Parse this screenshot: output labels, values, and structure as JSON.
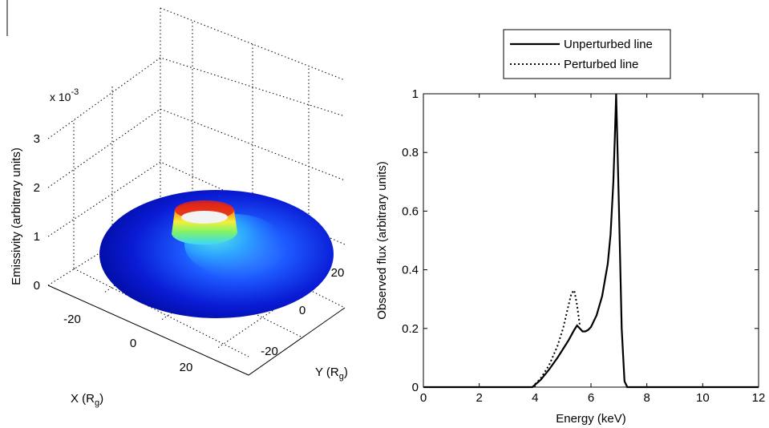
{
  "chart_data": [
    {
      "type": "surface3d",
      "zlabel": "Emissivity (arbitrary units)",
      "xlabel_main": "X (R",
      "xlabel_sub": "g",
      "xlabel_close": ")",
      "ylabel_main": "Y (R",
      "ylabel_sub": "g",
      "ylabel_close": ")",
      "zscale_base": "x 10",
      "zscale_exp": "-3",
      "x_ticks": [
        "-20",
        "0",
        "20"
      ],
      "y_ticks": [
        "-20",
        "0",
        "20"
      ],
      "z_ticks": [
        "0",
        "1",
        "2",
        "3"
      ],
      "zlim": [
        0,
        0.003
      ],
      "xlim": [
        -30,
        30
      ],
      "ylim": [
        -30,
        30
      ],
      "grid": true,
      "colormap": "jet"
    },
    {
      "type": "line",
      "xlabel": "Energy (keV)",
      "ylabel": "Observed flux (arbitrary units)",
      "xlim": [
        0,
        12
      ],
      "ylim": [
        0,
        1
      ],
      "x_ticks": [
        "0",
        "2",
        "4",
        "6",
        "8",
        "10",
        "12"
      ],
      "y_ticks": [
        "0",
        "0.2",
        "0.4",
        "0.6",
        "0.8",
        "1"
      ],
      "legend_position": "top-center",
      "series": [
        {
          "name": "Unperturbed line",
          "style": "solid",
          "x": [
            0,
            3.9,
            4.2,
            4.5,
            4.8,
            5.0,
            5.2,
            5.4,
            5.5,
            5.6,
            5.7,
            5.8,
            5.9,
            6.0,
            6.2,
            6.4,
            6.6,
            6.7,
            6.8,
            6.85,
            6.9,
            7.0,
            7.1,
            7.2,
            7.3,
            12
          ],
          "y": [
            0,
            0,
            0.025,
            0.06,
            0.1,
            0.13,
            0.16,
            0.195,
            0.21,
            0.2,
            0.19,
            0.19,
            0.195,
            0.205,
            0.245,
            0.31,
            0.42,
            0.52,
            0.7,
            0.84,
            1.0,
            0.62,
            0.2,
            0.02,
            0,
            0
          ]
        },
        {
          "name": "Perturbed line",
          "style": "dotted",
          "x": [
            3.9,
            4.2,
            4.5,
            4.8,
            5.0,
            5.2,
            5.3,
            5.4,
            5.5,
            5.6
          ],
          "y": [
            0,
            0.03,
            0.075,
            0.14,
            0.2,
            0.28,
            0.32,
            0.33,
            0.28,
            0.21
          ]
        }
      ]
    }
  ]
}
